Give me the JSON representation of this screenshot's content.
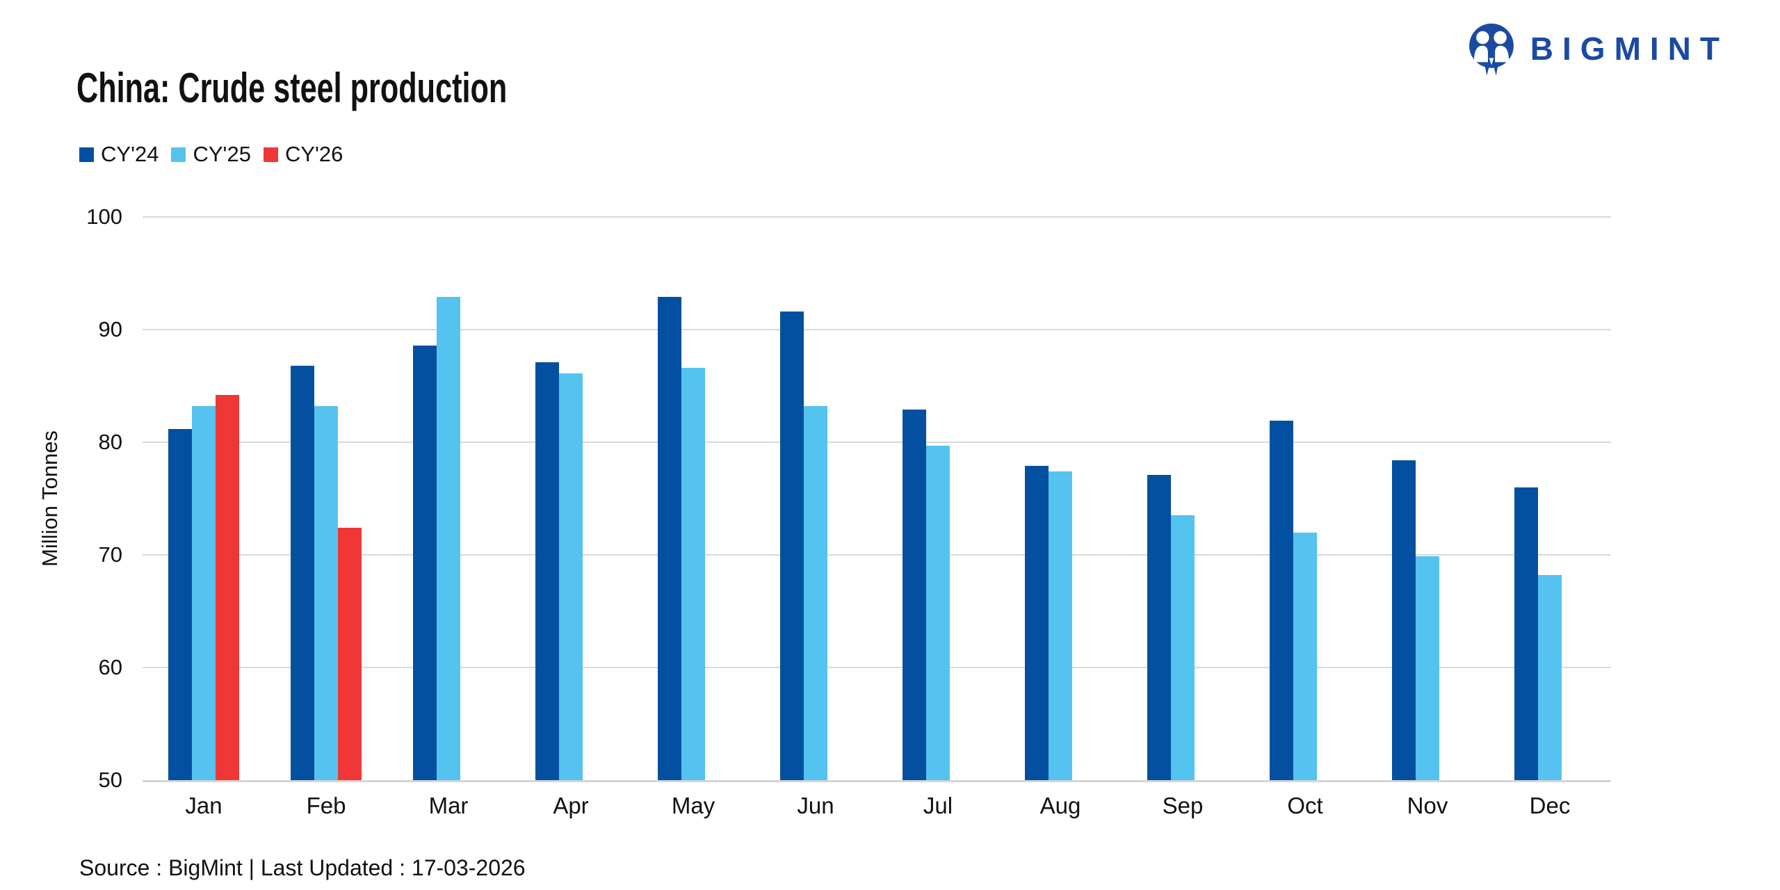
{
  "brand": {
    "name": "BIGMINT",
    "logo_color": "#1b4aa3"
  },
  "title": "China: Crude steel production",
  "legend": [
    {
      "label": "CY'24",
      "color": "#0450a0"
    },
    {
      "label": "CY'25",
      "color": "#55c3f0"
    },
    {
      "label": "CY'26",
      "color": "#ee3736"
    }
  ],
  "y_axis": {
    "label": "Million Tonnes",
    "ticks": [
      100,
      90,
      80,
      70,
      60,
      50
    ],
    "min": 50,
    "max": 100
  },
  "footer": "Source : BigMint | Last Updated : 17-03-2026",
  "colors": {
    "gridline": "#d9d9d9",
    "axis_line": "#d5d5d5"
  },
  "chart_data": {
    "type": "bar",
    "title": "China: Crude steel production",
    "xlabel": "",
    "ylabel": "Million Tonnes",
    "ylim": [
      50,
      100
    ],
    "grid": true,
    "legend_position": "top-left",
    "categories": [
      "Jan",
      "Feb",
      "Mar",
      "Apr",
      "May",
      "Jun",
      "Jul",
      "Aug",
      "Sep",
      "Oct",
      "Nov",
      "Dec"
    ],
    "series": [
      {
        "name": "CY'24",
        "color": "#0450a0",
        "values": [
          81.2,
          86.8,
          88.6,
          87.1,
          92.9,
          91.6,
          82.9,
          77.9,
          77.1,
          81.9,
          78.4,
          76.0
        ]
      },
      {
        "name": "CY'25",
        "color": "#55c3f0",
        "values": [
          83.2,
          83.2,
          92.9,
          86.1,
          86.6,
          83.2,
          79.7,
          77.4,
          73.5,
          72.0,
          69.9,
          68.2
        ]
      },
      {
        "name": "CY'26",
        "color": "#ee3736",
        "values": [
          84.2,
          72.4,
          null,
          null,
          null,
          null,
          null,
          null,
          null,
          null,
          null,
          null
        ]
      }
    ]
  }
}
